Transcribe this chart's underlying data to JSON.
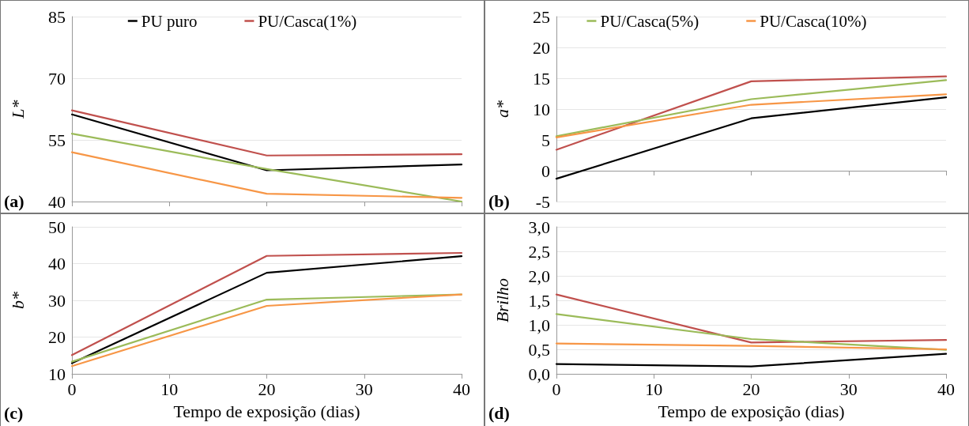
{
  "chart_data": [
    {
      "type": "line",
      "ylabel": "L*",
      "annotations": [
        "(a)"
      ],
      "x": [
        0,
        20,
        40
      ],
      "xlim": [
        0,
        40
      ],
      "xticks": [
        0,
        10,
        20,
        30,
        40
      ],
      "ylim": [
        40,
        85
      ],
      "yticks": [
        40,
        55,
        70,
        85
      ],
      "tick_labels": "y",
      "grid": "y",
      "legend": "top",
      "marker": "none",
      "series": [
        {
          "name": "PU puro",
          "color": "#000000",
          "values": [
            61.2,
            47.6,
            49.0
          ]
        },
        {
          "name": "PU/Casca(1%)",
          "color": "#c0504d",
          "values": [
            62.2,
            51.2,
            51.5
          ]
        },
        {
          "color": "#9bbb59",
          "values": [
            56.5,
            47.9,
            40
          ]
        },
        {
          "color": "#f79646",
          "values": [
            52.0,
            41.9,
            40.9
          ]
        }
      ]
    },
    {
      "type": "line",
      "ylabel": "a*",
      "annotations": [
        "(b)"
      ],
      "x": [
        0,
        20,
        40
      ],
      "xlim": [
        0,
        40
      ],
      "xticks": [
        0,
        10,
        20,
        30,
        40
      ],
      "ylim": [
        -5,
        25
      ],
      "yticks": [
        -5,
        0,
        5,
        10,
        15,
        20,
        25
      ],
      "tick_labels": "y",
      "grid": "y",
      "legend": "top",
      "marker": "none",
      "series": [
        {
          "color": "#000000",
          "values": [
            -1.3,
            8.5,
            11.9
          ]
        },
        {
          "color": "#c0504d",
          "values": [
            3.4,
            14.5,
            15.3
          ]
        },
        {
          "name": "PU/Casca(5%)",
          "color": "#9bbb59",
          "values": [
            5.6,
            11.6,
            14.7
          ]
        },
        {
          "name": "PU/Casca(10%)",
          "color": "#f79646",
          "values": [
            5.4,
            10.7,
            12.4
          ]
        }
      ]
    },
    {
      "type": "line",
      "ylabel": "b*",
      "xlabel": "Tempo de exposição (dias)",
      "annotations": [
        "(c)"
      ],
      "x": [
        0,
        20,
        40
      ],
      "xlim": [
        0,
        40
      ],
      "xticks": [
        0,
        10,
        20,
        30,
        40
      ],
      "ylim": [
        10,
        50
      ],
      "yticks": [
        10,
        20,
        30,
        40,
        50
      ],
      "grid": "y",
      "marker": "none",
      "series": [
        {
          "color": "#000000",
          "values": [
            12.9,
            37.5,
            42.0
          ]
        },
        {
          "color": "#c0504d",
          "values": [
            15.1,
            42.1,
            42.9
          ]
        },
        {
          "color": "#9bbb59",
          "values": [
            13.3,
            30.2,
            31.6
          ]
        },
        {
          "color": "#f79646",
          "values": [
            12.1,
            28.5,
            31.6
          ]
        }
      ]
    },
    {
      "type": "line",
      "ylabel": "Brilho",
      "xlabel": "Tempo de exposição (dias)",
      "annotations": [
        "(d)"
      ],
      "x": [
        0,
        20,
        40
      ],
      "xlim": [
        0,
        40
      ],
      "xticks": [
        0,
        10,
        20,
        30,
        40
      ],
      "ylim": [
        0,
        3
      ],
      "yticks": [
        {
          "value": 0,
          "label": "0,0"
        },
        {
          "value": 0.5,
          "label": "0,5"
        },
        {
          "value": 1,
          "label": "1,0"
        },
        {
          "value": 1.5,
          "label": "1,5"
        },
        {
          "value": 2,
          "label": "2,0"
        },
        {
          "value": 2.5,
          "label": "2,5"
        },
        {
          "value": 3,
          "label": "3,0"
        }
      ],
      "grid": "y",
      "marker": "none",
      "series": [
        {
          "color": "#000000",
          "values": [
            0.2,
            0.15,
            0.41
          ]
        },
        {
          "color": "#c0504d",
          "values": [
            1.62,
            0.64,
            0.69
          ]
        },
        {
          "color": "#9bbb59",
          "values": [
            1.22,
            0.71,
            0.49
          ]
        },
        {
          "color": "#f79646",
          "values": [
            0.62,
            0.57,
            0.5
          ]
        }
      ]
    }
  ]
}
